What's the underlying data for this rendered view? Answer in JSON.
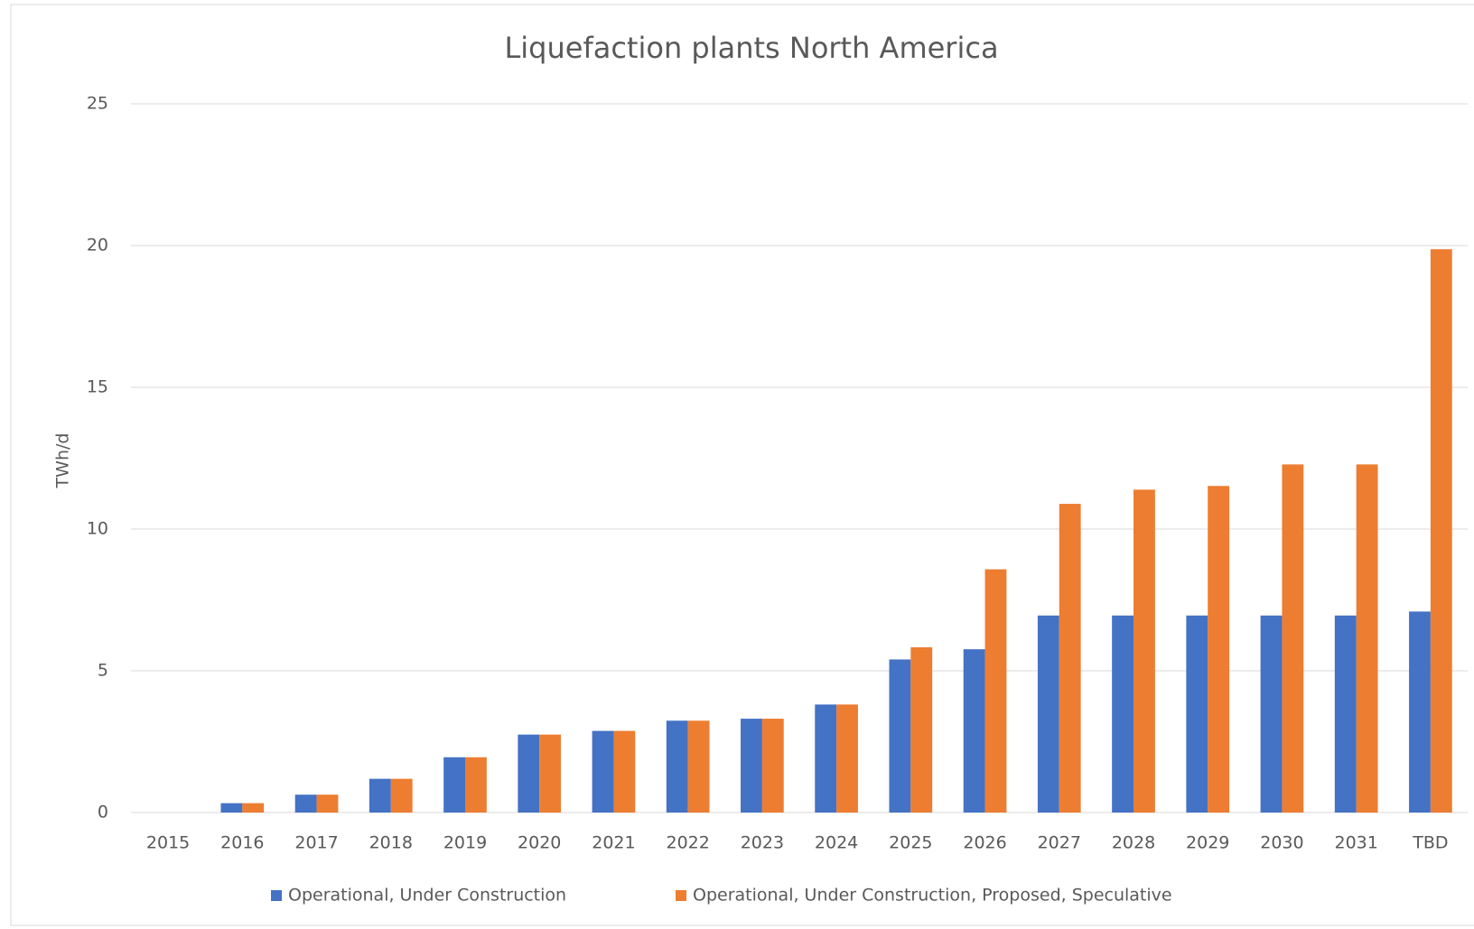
{
  "chart_data": {
    "type": "bar",
    "title": "Liquefaction plants North America",
    "y_label": "TWh/d",
    "categories": [
      "2015",
      "2016",
      "2017",
      "2018",
      "2019",
      "2020",
      "2021",
      "2022",
      "2023",
      "2024",
      "2025",
      "2026",
      "2027",
      "2028",
      "2029",
      "2030",
      "2031",
      "TBD"
    ],
    "series": [
      {
        "name": "Operational, Under Construction",
        "color": "#4472c4",
        "values": [
          0,
          0.33,
          0.63,
          1.19,
          1.95,
          2.75,
          2.88,
          3.24,
          3.31,
          3.81,
          5.4,
          5.76,
          6.95,
          6.95,
          6.95,
          6.95,
          6.95,
          7.09
        ]
      },
      {
        "name": "Operational, Under Construction, Proposed, Speculative",
        "color": "#ed7d31",
        "values": [
          0,
          0.33,
          0.63,
          1.19,
          1.95,
          2.75,
          2.88,
          3.24,
          3.31,
          3.81,
          5.83,
          8.58,
          10.89,
          11.39,
          11.52,
          12.28,
          12.28,
          19.87
        ]
      }
    ],
    "ylim": [
      0,
      25
    ],
    "yticks": [
      0,
      5,
      10,
      15,
      20,
      25
    ],
    "grid": true,
    "legend": "bottom"
  }
}
